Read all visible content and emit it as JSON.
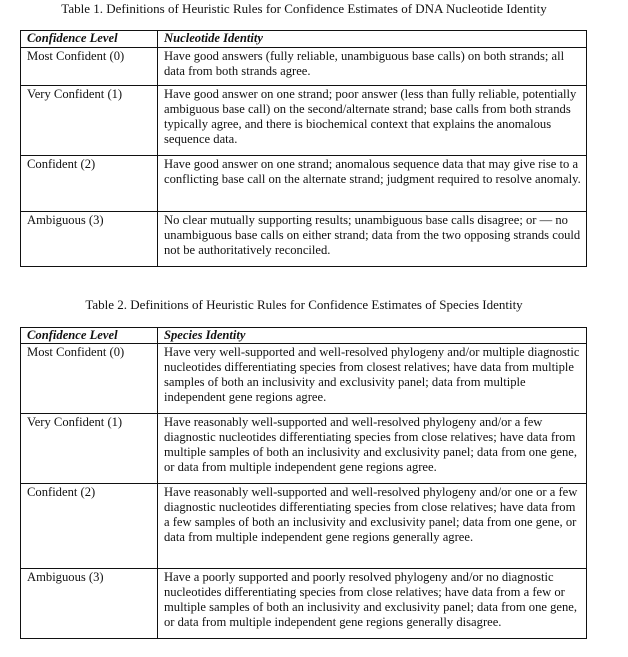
{
  "table1": {
    "caption": "Table 1. Definitions of Heuristic Rules for Confidence Estimates of DNA Nucleotide Identity",
    "headers": [
      "Confidence Level",
      "Nucleotide Identity"
    ],
    "rows": [
      {
        "level": "Most Confident (0)",
        "definition": "Have good answers (fully reliable, unambiguous base calls) on both strands; all data from both strands agree."
      },
      {
        "level": "Very Confident (1)",
        "definition": "Have good answer on one strand; poor answer (less than fully reliable, potentially ambiguous base call) on the second/alternate strand; base calls from both strands typically agree, and there is biochemical context that explains the anomalous sequence data."
      },
      {
        "level": "Confident (2)",
        "definition": "Have good answer on one strand; anomalous sequence data that may give rise to a conflicting base call on the alternate strand; judgment required to resolve anomaly."
      },
      {
        "level": "Ambiguous (3)",
        "definition": "No clear mutually supporting results; unambiguous base calls disagree; or — no unambiguous base calls on either strand; data from the two opposing strands could not be authoritatively reconciled."
      }
    ]
  },
  "table2": {
    "caption": "Table 2. Definitions of Heuristic Rules for Confidence Estimates of Species Identity",
    "headers": [
      "Confidence Level",
      "Species Identity"
    ],
    "rows": [
      {
        "level": "Most Confident (0)",
        "definition": "Have very well-supported and well-resolved phylogeny and/or multiple diagnostic nucleotides differentiating species from closest relatives; have data from multiple samples of both an inclusivity and exclusivity panel; data from multiple independent gene regions agree."
      },
      {
        "level": "Very Confident (1)",
        "definition": "Have reasonably well-supported and well-resolved phylogeny and/or a few diagnostic nucleotides differentiating species from close relatives; have data from multiple samples of both an inclusivity and exclusivity panel; data from one gene, or data from multiple independent gene regions agree."
      },
      {
        "level": "Confident (2)",
        "definition": "Have reasonably well-supported and well-resolved phylogeny and/or one or a few diagnostic nucleotides differentiating species from close relatives; have data from a few samples of both an inclusivity and exclusivity panel; data from one gene, or data from multiple independent gene regions generally agree."
      },
      {
        "level": "Ambiguous (3)",
        "definition": "Have a poorly supported and poorly resolved phylogeny and/or no diagnostic nucleotides differentiating species from close relatives; have data from a few or multiple samples of both an inclusivity and exclusivity panel; data from one gene, or data from multiple independent gene regions generally disagree."
      }
    ]
  }
}
